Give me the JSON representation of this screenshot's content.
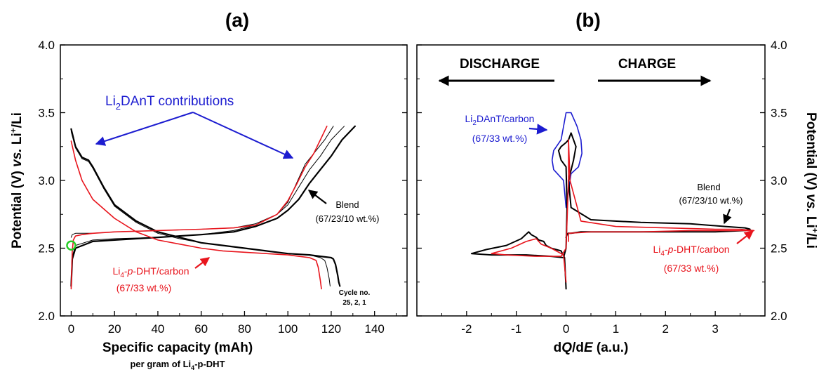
{
  "panels": {
    "a": {
      "label": "(a)",
      "xlabel": "Specific capacity (mAh)",
      "xlabel_sub_pre": "per gram of Li",
      "xlabel_sub_idx": "4",
      "xlabel_sub_post": "-p-DHT",
      "ylabel_pre": "Potential (V) ",
      "ylabel_vs": "vs.",
      "ylabel_li": " Li",
      "ylabel_sup": "+",
      "ylabel_post": "/Li",
      "contrib_pre": "Li",
      "contrib_sub": "2",
      "contrib_post": "DAnT contributions",
      "blend_label": "Blend",
      "blend_comp": "(67/23/10 wt.%)",
      "lidht_pre": "Li",
      "lidht_sub": "4",
      "lidht_dash1": "-",
      "lidht_p": "p",
      "lidht_post": "-DHT/carbon",
      "lidht_comp": "(67/33 wt.%)",
      "cycle_label": "Cycle no.",
      "cycle_values": "25, 2, 1"
    },
    "b": {
      "label": "(b)",
      "xlabel_d1": "d",
      "xlabel_q": "Q",
      "xlabel_d2": "/d",
      "xlabel_e": "E",
      "xlabel_unit": " (a.u.)",
      "ylabel_pre": "Potential (V) ",
      "ylabel_vs": "vs.",
      "ylabel_li": " Li",
      "ylabel_sup": "+",
      "ylabel_post": "/Li",
      "discharge": "DISCHARGE",
      "charge": "CHARGE",
      "dant_pre": "Li",
      "dant_sub": "2",
      "dant_post": "DAnT/carbon",
      "dant_comp": "(67/33 wt.%)",
      "blend_label": "Blend",
      "blend_comp": "(67/23/10 wt.%)",
      "lidht_pre": "Li",
      "lidht_sub": "4",
      "lidht_p": "p",
      "lidht_post": "-DHT/carbon",
      "lidht_comp": "(67/33 wt.%)"
    }
  },
  "colors": {
    "blend": "#000000",
    "lidht": "#e8141c",
    "dant": "#1c1cd0",
    "marker": "#22cc22"
  },
  "chart_data": [
    {
      "type": "line",
      "panel": "a",
      "xlabel": "Specific capacity (mAh)",
      "ylabel": "Potential (V) vs. Li+/Li",
      "xlim": [
        -5,
        155
      ],
      "ylim": [
        2.0,
        4.0
      ],
      "x_ticks": [
        "0",
        "20",
        "40",
        "60",
        "80",
        "100",
        "120",
        "140"
      ],
      "y_ticks": [
        "2.0",
        "2.5",
        "3.0",
        "3.5",
        "4.0"
      ],
      "marker": {
        "x": 0,
        "y": 2.52
      },
      "series": [
        {
          "name": "Blend",
          "color": "#000000",
          "width": 2.2,
          "x": [
            0,
            2,
            5,
            8,
            10,
            15,
            20,
            30,
            40,
            50,
            60,
            70,
            80,
            90,
            100,
            110,
            115,
            120,
            121,
            122,
            123,
            123.5,
            124
          ],
          "y": [
            3.38,
            3.25,
            3.17,
            3.15,
            3.1,
            2.95,
            2.82,
            2.7,
            2.62,
            2.58,
            2.54,
            2.52,
            2.5,
            2.48,
            2.46,
            2.45,
            2.44,
            2.43,
            2.42,
            2.38,
            2.3,
            2.25,
            2.22
          ]
        },
        {
          "name": "Blend",
          "color": "#000000",
          "width": 1.0,
          "x": [
            0,
            2,
            5,
            8,
            10,
            15,
            20,
            30,
            40,
            50,
            60,
            70,
            80,
            90,
            100,
            110,
            115,
            117,
            118,
            119,
            119.5
          ],
          "y": [
            3.36,
            3.24,
            3.16,
            3.14,
            3.09,
            2.94,
            2.81,
            2.69,
            2.61,
            2.57,
            2.54,
            2.52,
            2.5,
            2.48,
            2.46,
            2.45,
            2.43,
            2.41,
            2.36,
            2.28,
            2.22
          ]
        },
        {
          "name": "Blend",
          "color": "#000000",
          "width": 2.2,
          "x": [
            0,
            0.5,
            2,
            10,
            20,
            40,
            60,
            75,
            85,
            95,
            100,
            105,
            110,
            115,
            120,
            125,
            131
          ],
          "y": [
            2.22,
            2.42,
            2.5,
            2.55,
            2.56,
            2.58,
            2.6,
            2.62,
            2.66,
            2.72,
            2.78,
            2.86,
            2.98,
            3.08,
            3.18,
            3.3,
            3.4
          ]
        },
        {
          "name": "Blend",
          "color": "#000000",
          "width": 1.0,
          "x": [
            0,
            0.5,
            2,
            10,
            20,
            40,
            60,
            75,
            85,
            95,
            100,
            105,
            110,
            115,
            120,
            126
          ],
          "y": [
            2.22,
            2.44,
            2.52,
            2.56,
            2.57,
            2.58,
            2.6,
            2.63,
            2.67,
            2.75,
            2.82,
            2.95,
            3.08,
            3.18,
            3.3,
            3.4
          ]
        },
        {
          "name": "Blend",
          "color": "#000000",
          "width": 1.0,
          "x": [
            0,
            0.5,
            2,
            10,
            20,
            40,
            60,
            75,
            85,
            95,
            100,
            104,
            108,
            112,
            117,
            121
          ],
          "y": [
            2.58,
            2.6,
            2.61,
            2.61,
            2.62,
            2.63,
            2.64,
            2.65,
            2.68,
            2.75,
            2.84,
            2.98,
            3.12,
            3.2,
            3.3,
            3.4
          ]
        },
        {
          "name": "Li4-p-DHT/carbon",
          "color": "#e8141c",
          "width": 1.6,
          "x": [
            0,
            2,
            5,
            10,
            20,
            30,
            40,
            50,
            60,
            70,
            80,
            90,
            100,
            105,
            110,
            113,
            114,
            115,
            115.5
          ],
          "y": [
            3.29,
            3.15,
            3.0,
            2.86,
            2.72,
            2.62,
            2.56,
            2.53,
            2.5,
            2.48,
            2.47,
            2.46,
            2.45,
            2.44,
            2.43,
            2.41,
            2.36,
            2.26,
            2.2
          ]
        },
        {
          "name": "Li4-p-DHT/carbon",
          "color": "#e8141c",
          "width": 1.6,
          "x": [
            0,
            0.5,
            1,
            2,
            5,
            10,
            20,
            40,
            60,
            75,
            85,
            95,
            100,
            104,
            108,
            112,
            115,
            118
          ],
          "y": [
            2.2,
            2.48,
            2.56,
            2.59,
            2.6,
            2.61,
            2.62,
            2.63,
            2.64,
            2.65,
            2.67,
            2.75,
            2.85,
            2.97,
            3.1,
            3.2,
            3.3,
            3.4
          ]
        }
      ]
    },
    {
      "type": "line",
      "panel": "b",
      "xlabel": "dQ/dE (a.u.)",
      "ylabel": "Potential (V) vs. Li+/Li",
      "xlim": [
        -3,
        4
      ],
      "ylim": [
        2.0,
        4.0
      ],
      "x_ticks": [
        "-2",
        "-1",
        "0",
        "1",
        "2",
        "3"
      ],
      "y_ticks": [
        "2.0",
        "2.5",
        "3.0",
        "3.5",
        "4.0"
      ],
      "series": [
        {
          "name": "Li2DAnT/carbon",
          "color": "#1c1cd0",
          "width": 1.6,
          "x": [
            0,
            -0.05,
            -0.25,
            -0.28,
            -0.25,
            -0.1,
            0,
            0.1,
            0.22,
            0.3,
            0.32,
            0.25,
            0.1,
            0
          ],
          "y": [
            2.8,
            3.0,
            3.08,
            3.15,
            3.22,
            3.3,
            3.5,
            3.5,
            3.4,
            3.3,
            3.2,
            3.1,
            3.05,
            2.8
          ]
        },
        {
          "name": "Blend",
          "color": "#000000",
          "width": 2.0,
          "x": [
            0,
            -0.02,
            -0.03,
            -0.1,
            -0.3,
            -0.4,
            -0.45,
            -0.55,
            -0.6,
            -0.7,
            -0.75,
            -0.9,
            -1.2,
            -1.6,
            -1.9,
            -1.5,
            -0.8,
            -0.3,
            -0.05,
            0,
            0.02,
            0.0,
            -0.1,
            -0.15,
            -0.1,
            0,
            0.05,
            0.1,
            0.2,
            0.15,
            0.05,
            0.1,
            0.5,
            1.5,
            2.5,
            3.2,
            3.6,
            3.7,
            3.6,
            3.0,
            2.0,
            1.0,
            0.3,
            0.1,
            0.04,
            0.02,
            0
          ],
          "y": [
            2.2,
            2.35,
            2.43,
            2.48,
            2.5,
            2.52,
            2.55,
            2.56,
            2.58,
            2.6,
            2.62,
            2.57,
            2.52,
            2.49,
            2.46,
            2.45,
            2.45,
            2.44,
            2.43,
            2.5,
            2.8,
            3.1,
            3.15,
            3.22,
            3.25,
            3.28,
            3.3,
            3.35,
            3.25,
            3.15,
            3.0,
            2.8,
            2.71,
            2.69,
            2.68,
            2.66,
            2.65,
            2.64,
            2.63,
            2.62,
            2.62,
            2.62,
            2.62,
            2.61,
            2.61,
            2.6,
            2.58
          ]
        },
        {
          "name": "Li4-p-DHT/carbon",
          "color": "#e8141c",
          "width": 1.6,
          "x": [
            0,
            -0.05,
            -0.3,
            -0.5,
            -0.6,
            -0.8,
            -1.1,
            -1.5,
            -1.2,
            -0.6,
            -0.1,
            0,
            0.05,
            0.05,
            0.08,
            0.3,
            1.0,
            2.0,
            3.0,
            3.5,
            3.78,
            3.7,
            3.3,
            2.5,
            1.5,
            0.5,
            0.05,
            0.05
          ],
          "y": [
            2.25,
            2.45,
            2.5,
            2.53,
            2.57,
            2.55,
            2.5,
            2.46,
            2.45,
            2.44,
            2.44,
            2.5,
            3.0,
            3.3,
            3.0,
            2.7,
            2.66,
            2.65,
            2.64,
            2.64,
            2.63,
            2.63,
            2.63,
            2.63,
            2.62,
            2.62,
            2.61,
            2.55
          ]
        }
      ]
    }
  ]
}
